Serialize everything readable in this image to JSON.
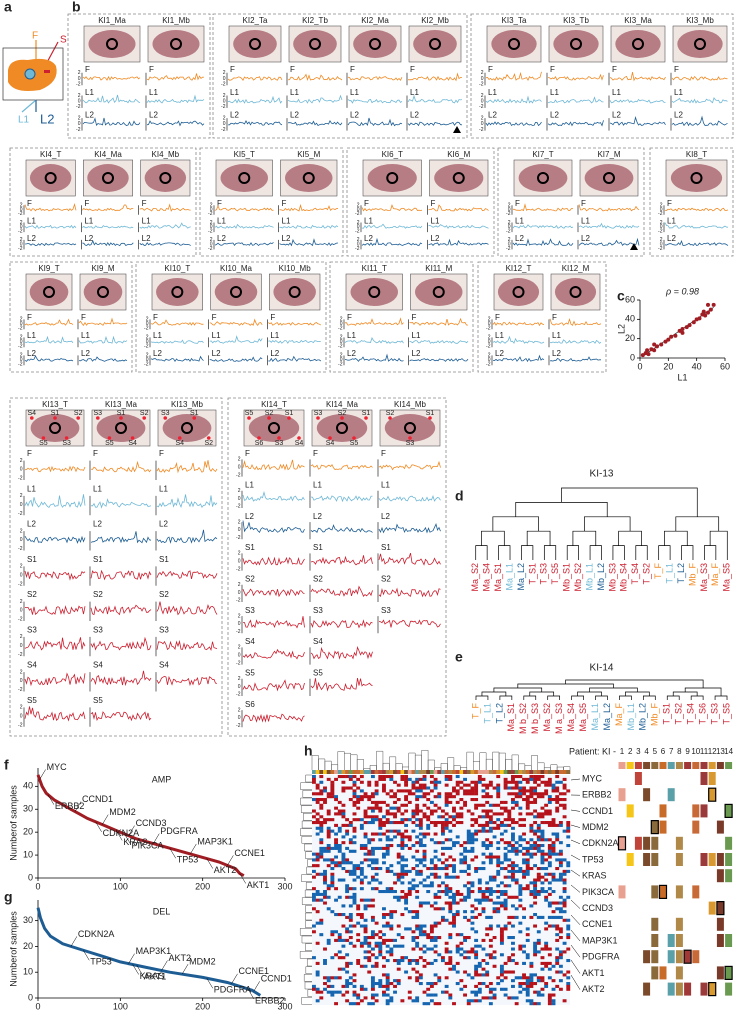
{
  "panel_letters": [
    "a",
    "b",
    "c",
    "d",
    "e",
    "f",
    "g",
    "h"
  ],
  "schematic": {
    "labels": [
      "F",
      "S",
      "L1",
      "L2"
    ]
  },
  "track_colors": {
    "F": "#f08a24",
    "L1": "#6fb8d6",
    "L2": "#1d5d94",
    "S": "#cc1f2f"
  },
  "track_ticks": [
    2,
    0,
    -2
  ],
  "groups": [
    {
      "tracks": [
        "F",
        "L1",
        "L2"
      ],
      "samples": [
        {
          "label": "KI1_Ma"
        },
        {
          "label": "KI1_Mb"
        }
      ]
    },
    {
      "tracks": [
        "F",
        "L1",
        "L2"
      ],
      "samples": [
        {
          "label": "KI2_Ta"
        },
        {
          "label": "KI2_Tb"
        },
        {
          "label": "KI2_Ma"
        },
        {
          "label": "KI2_Mb"
        }
      ]
    },
    {
      "tracks": [
        "F",
        "L1",
        "L2"
      ],
      "samples": [
        {
          "label": "KI3_Ta"
        },
        {
          "label": "KI3_Tb"
        },
        {
          "label": "KI3_Ma"
        },
        {
          "label": "KI3_Mb"
        }
      ]
    },
    {
      "tracks": [
        "F",
        "L1",
        "L2"
      ],
      "samples": [
        {
          "label": "KI4_T"
        },
        {
          "label": "KI4_Ma"
        },
        {
          "label": "KI4_Mb"
        }
      ]
    },
    {
      "tracks": [
        "F",
        "L1",
        "L2"
      ],
      "samples": [
        {
          "label": "KI5_T"
        },
        {
          "label": "KI5_M"
        }
      ]
    },
    {
      "tracks": [
        "F",
        "L1",
        "L2"
      ],
      "samples": [
        {
          "label": "KI6_T"
        },
        {
          "label": "KI6_M"
        }
      ]
    },
    {
      "tracks": [
        "F",
        "L1",
        "L2"
      ],
      "samples": [
        {
          "label": "KI7_T"
        },
        {
          "label": "KI7_M"
        }
      ]
    },
    {
      "tracks": [
        "F",
        "L1",
        "L2"
      ],
      "samples": [
        {
          "label": "KI8_T"
        }
      ]
    },
    {
      "tracks": [
        "F",
        "L1",
        "L2"
      ],
      "samples": [
        {
          "label": "KI9_T"
        },
        {
          "label": "KI9_M"
        }
      ]
    },
    {
      "tracks": [
        "F",
        "L1",
        "L2"
      ],
      "samples": [
        {
          "label": "KI10_T"
        },
        {
          "label": "KI10_Ma"
        },
        {
          "label": "KI10_Mb"
        }
      ]
    },
    {
      "tracks": [
        "F",
        "L1",
        "L2"
      ],
      "samples": [
        {
          "label": "KI11_T"
        },
        {
          "label": "KI11_M"
        }
      ]
    },
    {
      "tracks": [
        "F",
        "L1",
        "L2"
      ],
      "samples": [
        {
          "label": "KI12_T"
        },
        {
          "label": "KI12_M"
        }
      ]
    },
    {
      "samples": [
        {
          "label": "KI13_T",
          "markers": [
            "S4",
            "S5",
            "S1",
            "S3",
            "S2"
          ],
          "tracks": [
            "F",
            "L1",
            "L2",
            "S1",
            "S2",
            "S3",
            "S4",
            "S5"
          ]
        },
        {
          "label": "KI13_Ma",
          "markers": [
            "S3",
            "S5",
            "S1",
            "S4",
            "S2"
          ],
          "tracks": [
            "F",
            "L1",
            "L2",
            "S1",
            "S2",
            "S3",
            "S4",
            "S5"
          ]
        },
        {
          "label": "KI13_Mb",
          "markers": [
            "S3",
            "S4",
            "S1",
            "S2"
          ],
          "tracks": [
            "F",
            "L1",
            "L2",
            "S1",
            "S2",
            "S3",
            "S4"
          ]
        }
      ]
    },
    {
      "samples": [
        {
          "label": "KI14_T",
          "markers": [
            "S5",
            "S6",
            "S2",
            "S3",
            "S1",
            "S4"
          ],
          "tracks": [
            "F",
            "L1",
            "L2",
            "S1",
            "S2",
            "S3",
            "S4",
            "S5",
            "S6"
          ]
        },
        {
          "label": "KI14_Ma",
          "markers": [
            "S3",
            "S4",
            "S2",
            "S5",
            "S1"
          ],
          "tracks": [
            "F",
            "L1",
            "L2",
            "S1",
            "S2",
            "S3",
            "S4",
            "S5"
          ]
        },
        {
          "label": "KI14_Mb",
          "markers": [
            "S2",
            "S3",
            "S1"
          ],
          "tracks": [
            "F",
            "L1",
            "L2",
            "S1",
            "S2",
            "S3"
          ]
        }
      ]
    }
  ],
  "chart_data": [
    {
      "type": "scatter",
      "annotation": "ρ = 0.98",
      "x_label": "L1",
      "y_label": "L2",
      "color": "#a11d24",
      "x": [
        2,
        4,
        6,
        8,
        10,
        12,
        15,
        18,
        20,
        22,
        25,
        28,
        30,
        33,
        35,
        38,
        40,
        42,
        44,
        46,
        48,
        50,
        52,
        5,
        10,
        30,
        45,
        48
      ],
      "y": [
        3,
        5,
        4,
        9,
        8,
        12,
        14,
        17,
        19,
        22,
        23,
        28,
        30,
        32,
        34,
        37,
        40,
        41,
        45,
        44,
        47,
        50,
        55,
        8,
        14,
        26,
        48,
        55
      ],
      "xlim": [
        0,
        60
      ],
      "ylim": [
        0,
        60
      ],
      "xticks": [
        0,
        20,
        40,
        60
      ],
      "yticks": [
        0,
        20,
        40,
        60
      ]
    },
    {
      "type": "line",
      "title": "AMP",
      "y_label": "Numberof samples",
      "color": "#a11d24",
      "x": [
        0,
        2,
        5,
        10,
        20,
        30,
        40,
        50,
        60,
        80,
        100,
        120,
        140,
        160,
        180,
        200,
        220,
        240,
        245,
        250
      ],
      "values": [
        45,
        43,
        40,
        37,
        34,
        32,
        30,
        28,
        26,
        23,
        20,
        17,
        15,
        13,
        11,
        9,
        7,
        4,
        2,
        1
      ],
      "annotations": [
        {
          "label": "MYC",
          "x": 2
        },
        {
          "label": "ERBB2",
          "x": 12
        },
        {
          "label": "CCND1",
          "x": 45
        },
        {
          "label": "CDKN2A",
          "x": 70
        },
        {
          "label": "MDM2",
          "x": 78
        },
        {
          "label": "KRAS",
          "x": 95
        },
        {
          "label": "CCND3",
          "x": 110
        },
        {
          "label": "PIK3CA",
          "x": 105
        },
        {
          "label": "PDGFRA",
          "x": 140
        },
        {
          "label": "TP53",
          "x": 160
        },
        {
          "label": "MAP3K1",
          "x": 185
        },
        {
          "label": "AKT2",
          "x": 205
        },
        {
          "label": "CCNE1",
          "x": 230
        },
        {
          "label": "AKT1",
          "x": 245
        }
      ],
      "xlim": [
        0,
        300
      ],
      "ylim": [
        0,
        48
      ],
      "xticks": [
        0,
        100,
        200,
        300
      ],
      "yticks": [
        0,
        10,
        20,
        30,
        40
      ]
    },
    {
      "type": "line",
      "title": "DEL",
      "y_label": "Numberof samples",
      "color": "#1d5d94",
      "x": [
        0,
        3,
        8,
        15,
        30,
        50,
        80,
        100,
        130,
        160,
        200,
        230,
        260,
        270
      ],
      "values": [
        35,
        31,
        27,
        24,
        21,
        19,
        16,
        14,
        12,
        10,
        8,
        6,
        3,
        1
      ],
      "annotations": [
        {
          "label": "CDKN2A",
          "x": 40
        },
        {
          "label": "TP53",
          "x": 55
        },
        {
          "label": "MAP3K1",
          "x": 110
        },
        {
          "label": "AKT1",
          "x": 120
        },
        {
          "label": "AKT2",
          "x": 150
        },
        {
          "label": "KRAS",
          "x": 115
        },
        {
          "label": "MDM2",
          "x": 175
        },
        {
          "label": "PDGFRA",
          "x": 205
        },
        {
          "label": "CCNE1",
          "x": 235
        },
        {
          "label": "ERBB2",
          "x": 255
        },
        {
          "label": "CCND1",
          "x": 262
        }
      ],
      "xlim": [
        0,
        300
      ],
      "ylim": [
        0,
        38
      ],
      "xticks": [
        0,
        100,
        200,
        300
      ],
      "yticks": [
        0,
        10,
        20,
        30
      ]
    }
  ],
  "dendrograms": [
    {
      "title": "KI-13",
      "leaves": [
        {
          "label": "Ma_S2",
          "color": "#cc1f2f"
        },
        {
          "label": "Ma_S4",
          "color": "#cc1f2f"
        },
        {
          "label": "Ma_S1",
          "color": "#cc1f2f"
        },
        {
          "label": "Ma_L1",
          "color": "#6fb8d6"
        },
        {
          "label": "Ma_L2",
          "color": "#1d5d94"
        },
        {
          "label": "T_S1",
          "color": "#cc1f2f"
        },
        {
          "label": "T_S3",
          "color": "#cc1f2f"
        },
        {
          "label": "T_S5",
          "color": "#cc1f2f"
        },
        {
          "label": "Mb_S1",
          "color": "#cc1f2f"
        },
        {
          "label": "Mb_S2",
          "color": "#cc1f2f"
        },
        {
          "label": "Mb_L1",
          "color": "#6fb8d6"
        },
        {
          "label": "Mb_L2",
          "color": "#1d5d94"
        },
        {
          "label": "Mb_S3",
          "color": "#cc1f2f"
        },
        {
          "label": "Mb_S4",
          "color": "#cc1f2f"
        },
        {
          "label": "T_S4",
          "color": "#cc1f2f"
        },
        {
          "label": "T_S2",
          "color": "#cc1f2f"
        },
        {
          "label": "T_F",
          "color": "#f08a24"
        },
        {
          "label": "T_L1",
          "color": "#6fb8d6"
        },
        {
          "label": "T_L2",
          "color": "#1d5d94"
        },
        {
          "label": "Mb_F",
          "color": "#f08a24"
        },
        {
          "label": "Ma_S3",
          "color": "#cc1f2f"
        },
        {
          "label": "Ma_F",
          "color": "#f08a24"
        },
        {
          "label": "Ma_S5",
          "color": "#cc1f2f"
        }
      ]
    },
    {
      "title": "KI-14",
      "leaves": [
        {
          "label": "T_F",
          "color": "#f08a24"
        },
        {
          "label": "T_L1",
          "color": "#6fb8d6"
        },
        {
          "label": "T_L2",
          "color": "#1d5d94"
        },
        {
          "label": "Ma_S1",
          "color": "#cc1f2f"
        },
        {
          "label": "M b_S2",
          "color": "#cc1f2f"
        },
        {
          "label": "M b_S3",
          "color": "#cc1f2f"
        },
        {
          "label": "Ma_S2",
          "color": "#cc1f2f"
        },
        {
          "label": "M a_S3",
          "color": "#cc1f2f"
        },
        {
          "label": "Ma_S4",
          "color": "#cc1f2f"
        },
        {
          "label": "Ma_S5",
          "color": "#cc1f2f"
        },
        {
          "label": "Ma_L1",
          "color": "#6fb8d6"
        },
        {
          "label": "Ma_L2",
          "color": "#1d5d94"
        },
        {
          "label": "Ma_F",
          "color": "#f08a24"
        },
        {
          "label": "Mb_L1",
          "color": "#6fb8d6"
        },
        {
          "label": "Mb_L2",
          "color": "#1d5d94"
        },
        {
          "label": "Mb_F",
          "color": "#f08a24"
        },
        {
          "label": "T_S1",
          "color": "#cc1f2f"
        },
        {
          "label": "T_S2",
          "color": "#cc1f2f"
        },
        {
          "label": "T_S4",
          "color": "#cc1f2f"
        },
        {
          "label": "T_S6",
          "color": "#cc1f2f"
        },
        {
          "label": "T_S3",
          "color": "#cc1f2f"
        },
        {
          "label": "T_S5",
          "color": "#cc1f2f"
        }
      ]
    }
  ],
  "heatmap": {
    "patient_label": "Patient: KI -",
    "patients": [
      1,
      2,
      3,
      4,
      5,
      6,
      7,
      8,
      9,
      10,
      11,
      12,
      13,
      14
    ],
    "genes": [
      "MYC",
      "ERBB2",
      "CCND1",
      "MDM2",
      "CDKN2A",
      "TP53",
      "KRAS",
      "PIK3CA",
      "CCND3",
      "CCNE1",
      "MAP3K1",
      "PDGFRA",
      "AKT1",
      "AKT2"
    ]
  }
}
